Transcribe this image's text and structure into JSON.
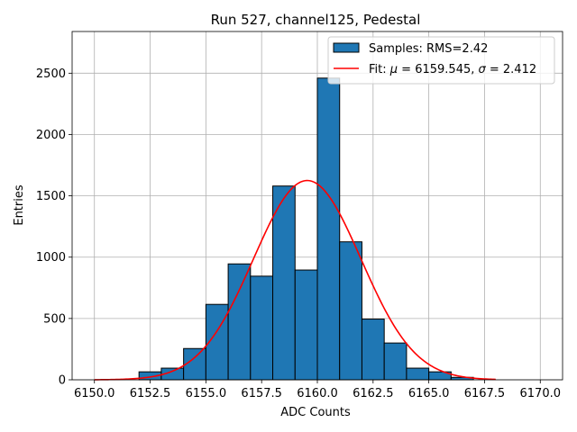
{
  "chart_data": {
    "type": "bar",
    "title": "Run 527, channel125, Pedestal",
    "xlabel": "ADC Counts",
    "ylabel": "Entries",
    "xlim": [
      6149.0,
      6171.0
    ],
    "ylim": [
      0,
      2840
    ],
    "grid": true,
    "legend_placement": "top-right",
    "x_ticks": [
      6150.0,
      6152.5,
      6155.0,
      6157.5,
      6160.0,
      6162.5,
      6165.0,
      6167.5,
      6170.0
    ],
    "x_tick_labels": [
      "6150.0",
      "6152.5",
      "6155.0",
      "6157.5",
      "6160.0",
      "6162.5",
      "6165.0",
      "6167.5",
      "6170.0"
    ],
    "y_ticks": [
      0,
      500,
      1000,
      1500,
      2000,
      2500
    ],
    "y_tick_labels": [
      "0",
      "500",
      "1000",
      "1500",
      "2000",
      "2500"
    ],
    "histogram": {
      "name": "Samples: RMS=2.42",
      "color": "#1f77b4",
      "edge_color": "#000000",
      "bin_edges": [
        6152.0,
        6153.0,
        6154.0,
        6155.0,
        6156.0,
        6157.0,
        6158.0,
        6159.0,
        6160.0,
        6161.0,
        6162.0,
        6163.0,
        6164.0,
        6165.0,
        6166.0,
        6167.0
      ],
      "counts": [
        65,
        95,
        255,
        615,
        945,
        845,
        1580,
        895,
        2460,
        1125,
        495,
        300,
        95,
        65,
        20
      ]
    },
    "fit": {
      "name_prefix": "Fit: ",
      "name_mu_part": " = 6159.545, ",
      "name_sigma_part": " = 2.412",
      "color": "#ff0000",
      "mu": 6159.545,
      "sigma": 2.412,
      "amplitude": 1625,
      "x_range": [
        6150.0,
        6168.0
      ]
    }
  }
}
